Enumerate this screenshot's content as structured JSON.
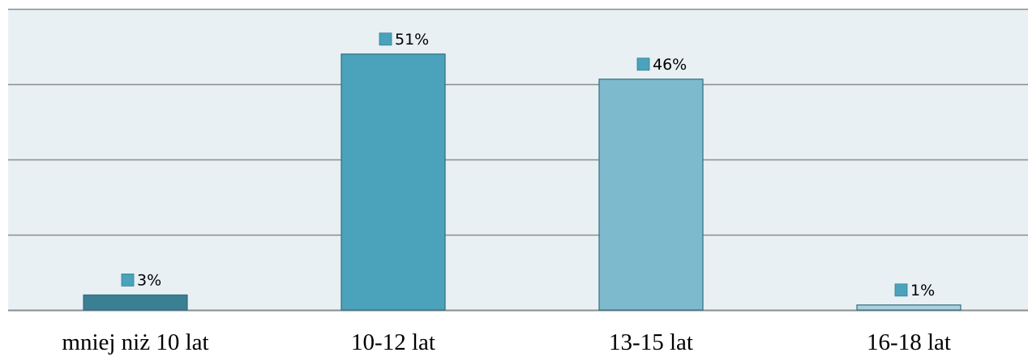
{
  "chart_data": {
    "type": "bar",
    "categories": [
      "mniej niż 10 lat",
      "10-12 lat",
      "13-15 lat",
      "16-18 lat"
    ],
    "values": [
      3,
      51,
      46,
      1
    ],
    "data_labels": [
      "3%",
      "51%",
      "46%",
      "1%"
    ],
    "unit": "%",
    "title": "",
    "xlabel": "",
    "ylabel": "",
    "ylim": [
      0,
      60
    ],
    "grid": true,
    "legend": "none"
  },
  "colors": {
    "plot_background": "#e8f0f4",
    "gridline": "#8c8c8c",
    "bars": [
      "#3a7f93",
      "#4aa3bb",
      "#7ebace",
      "#a9d3e2"
    ],
    "bar_stroke": "#2f6e80",
    "label_marker": "#4aa3bb"
  }
}
